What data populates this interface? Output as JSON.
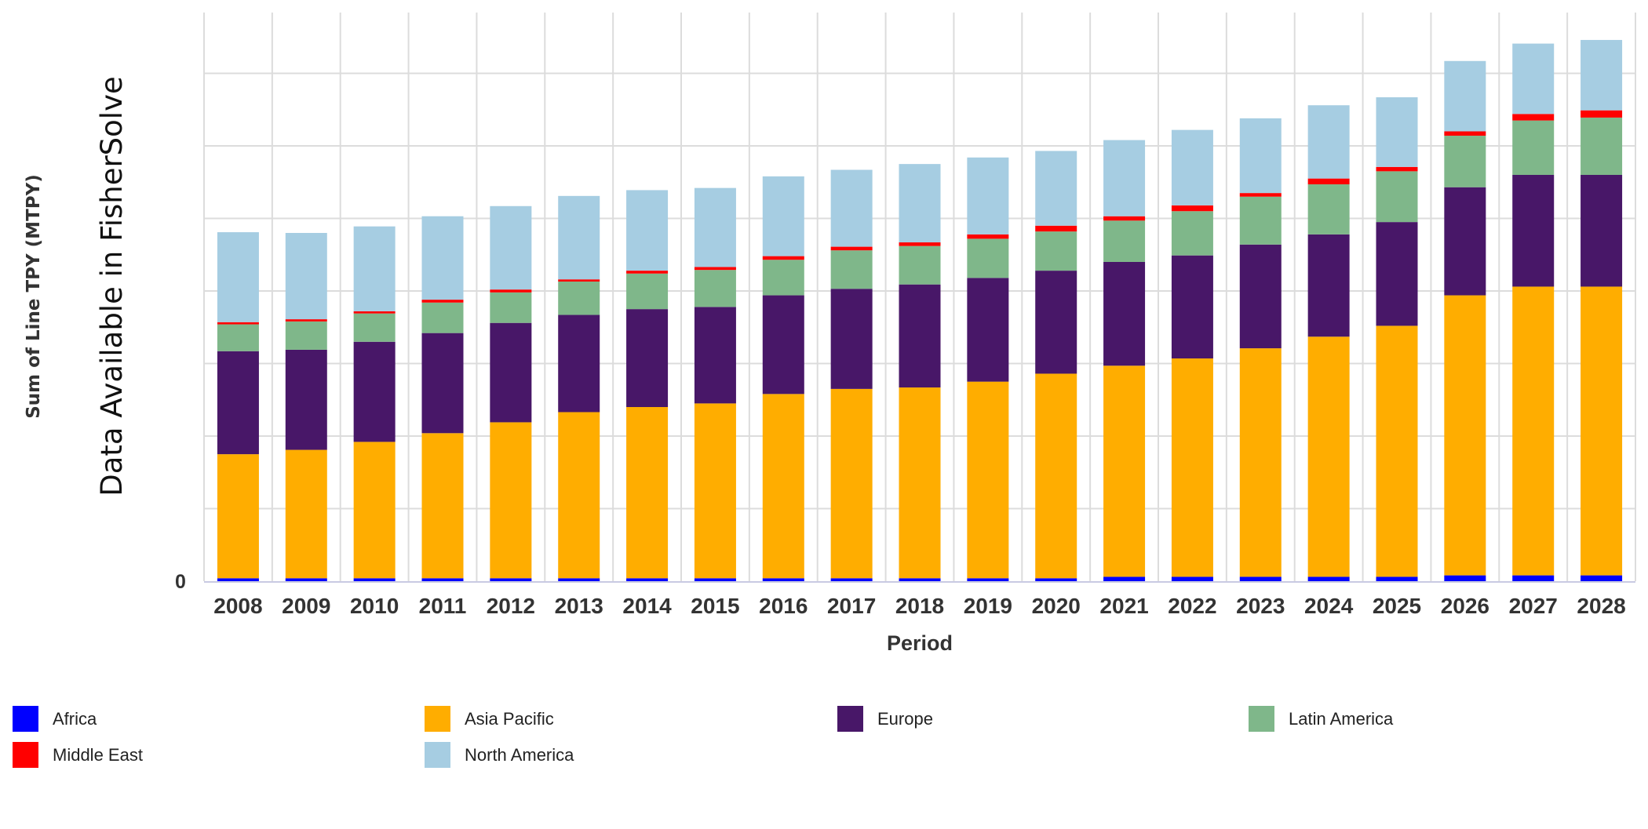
{
  "chart_data": {
    "type": "bar",
    "stacked": true,
    "title": "",
    "xlabel": "Period",
    "ylabel": "Sum of Line TPY (MTPY)",
    "ylabel_secondary": "Data Available in FisherSolve",
    "y_tick_labels": [
      "0"
    ],
    "y_units_note": "Y axis only labels 0; values are expressed in gridline intervals (1 unit = 1 gridline step)",
    "ylim": [
      0,
      7.84
    ],
    "y_gridline_step": 1,
    "grid": true,
    "legend_position": "bottom",
    "categories": [
      "2008",
      "2009",
      "2010",
      "2011",
      "2012",
      "2013",
      "2014",
      "2015",
      "2016",
      "2017",
      "2018",
      "2019",
      "2020",
      "2021",
      "2022",
      "2023",
      "2024",
      "2025",
      "2026",
      "2027",
      "2028"
    ],
    "series": [
      {
        "name": "Africa",
        "color": "#0000FF",
        "values": [
          0.04,
          0.04,
          0.04,
          0.04,
          0.04,
          0.04,
          0.04,
          0.04,
          0.04,
          0.04,
          0.04,
          0.04,
          0.04,
          0.06,
          0.06,
          0.06,
          0.06,
          0.06,
          0.08,
          0.08,
          0.08
        ]
      },
      {
        "name": "Asia Pacific",
        "color": "#FFAD00",
        "values": [
          1.71,
          1.77,
          1.88,
          2.0,
          2.15,
          2.29,
          2.36,
          2.41,
          2.54,
          2.61,
          2.63,
          2.71,
          2.82,
          2.91,
          3.01,
          3.15,
          3.31,
          3.46,
          3.86,
          3.98,
          3.98
        ]
      },
      {
        "name": "Europe",
        "color": "#481768",
        "values": [
          1.42,
          1.38,
          1.38,
          1.38,
          1.37,
          1.34,
          1.35,
          1.33,
          1.36,
          1.38,
          1.42,
          1.43,
          1.42,
          1.43,
          1.42,
          1.43,
          1.41,
          1.43,
          1.49,
          1.54,
          1.54
        ]
      },
      {
        "name": "Latin America",
        "color": "#7FB78A",
        "values": [
          0.37,
          0.39,
          0.39,
          0.42,
          0.42,
          0.46,
          0.49,
          0.51,
          0.49,
          0.53,
          0.53,
          0.54,
          0.54,
          0.57,
          0.61,
          0.66,
          0.69,
          0.7,
          0.71,
          0.75,
          0.79
        ]
      },
      {
        "name": "Middle East",
        "color": "#FF0000",
        "values": [
          0.03,
          0.03,
          0.03,
          0.04,
          0.04,
          0.03,
          0.04,
          0.04,
          0.05,
          0.05,
          0.05,
          0.06,
          0.08,
          0.06,
          0.08,
          0.05,
          0.08,
          0.06,
          0.06,
          0.09,
          0.1
        ]
      },
      {
        "name": "North America",
        "color": "#A6CDE2",
        "values": [
          1.24,
          1.19,
          1.17,
          1.15,
          1.15,
          1.15,
          1.11,
          1.09,
          1.1,
          1.06,
          1.08,
          1.06,
          1.03,
          1.05,
          1.04,
          1.03,
          1.01,
          0.96,
          0.97,
          0.97,
          0.97
        ]
      }
    ]
  },
  "legend": {
    "items": [
      {
        "label": "Africa",
        "color": "#0000FF"
      },
      {
        "label": "Asia Pacific",
        "color": "#FFAD00"
      },
      {
        "label": "Europe",
        "color": "#481768"
      },
      {
        "label": "Latin America",
        "color": "#7FB78A"
      },
      {
        "label": "Middle East",
        "color": "#FF0000"
      },
      {
        "label": "North America",
        "color": "#A6CDE2"
      }
    ]
  },
  "style": {
    "grid_color": "#DCDCDC",
    "baseline_color": "#C9CAE3"
  }
}
